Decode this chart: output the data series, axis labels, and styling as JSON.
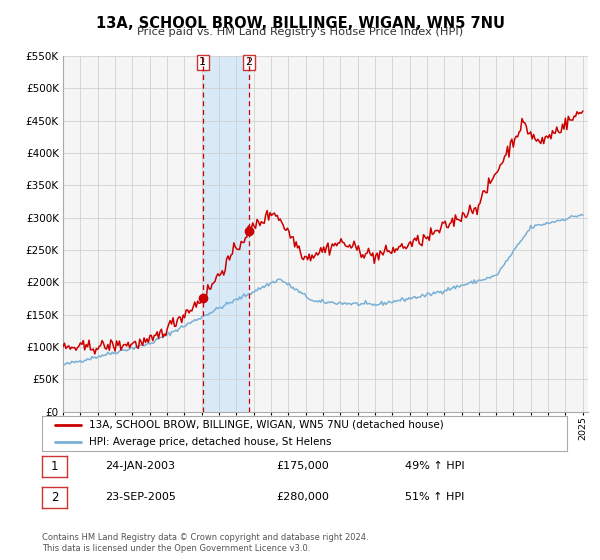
{
  "title": "13A, SCHOOL BROW, BILLINGE, WIGAN, WN5 7NU",
  "subtitle": "Price paid vs. HM Land Registry's House Price Index (HPI)",
  "legend_property": "13A, SCHOOL BROW, BILLINGE, WIGAN, WN5 7NU (detached house)",
  "legend_hpi": "HPI: Average price, detached house, St Helens",
  "sale1_label": "1",
  "sale1_date": "24-JAN-2003",
  "sale1_price": "£175,000",
  "sale1_hpi": "49% ↑ HPI",
  "sale1_date_num": 2003.07,
  "sale1_price_val": 175000,
  "sale2_label": "2",
  "sale2_date": "23-SEP-2005",
  "sale2_price": "£280,000",
  "sale2_hpi": "51% ↑ HPI",
  "sale2_date_num": 2005.73,
  "sale2_price_val": 280000,
  "property_color": "#cc0000",
  "hpi_color": "#7ab0d4",
  "chart_bg_color": "#f5f5f5",
  "grid_color": "#d0d0d0",
  "shade_color": "#d8eaf8",
  "ylim": [
    0,
    550000
  ],
  "xlim_start": 1995.0,
  "xlim_end": 2025.3,
  "footer": "Contains HM Land Registry data © Crown copyright and database right 2024.\nThis data is licensed under the Open Government Licence v3.0."
}
